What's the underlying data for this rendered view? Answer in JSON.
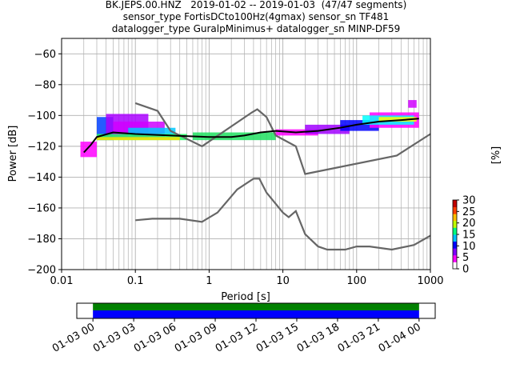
{
  "chart_data": {
    "type": "line",
    "title_lines": [
      "BK.JEPS.00.HNZ   2019-01-02 -- 2019-01-03  (47/47 segments)",
      "sensor_type FortisDCto100Hz(4gmax) sensor_sn TF481",
      "datalogger_type GuralpMinimus+ datalogger_sn MINP-DF59"
    ],
    "xlabel": "Period [s]",
    "ylabel": "Power [dB]",
    "x_scale": "log",
    "xlim": [
      0.01,
      1000
    ],
    "ylim": [
      -200,
      -50
    ],
    "x_ticks": [
      {
        "value": 0.01,
        "label": "0.01"
      },
      {
        "value": 0.1,
        "label": "0.1"
      },
      {
        "value": 1,
        "label": "1"
      },
      {
        "value": 10,
        "label": "10"
      },
      {
        "value": 100,
        "label": "100"
      },
      {
        "value": 1000,
        "label": "1000"
      }
    ],
    "y_ticks": [
      {
        "value": -60,
        "label": "−60"
      },
      {
        "value": -80,
        "label": "−80"
      },
      {
        "value": -100,
        "label": "−100"
      },
      {
        "value": -120,
        "label": "−120"
      },
      {
        "value": -140,
        "label": "−140"
      },
      {
        "value": -160,
        "label": "−160"
      },
      {
        "value": -180,
        "label": "−180"
      },
      {
        "value": -200,
        "label": "−200"
      }
    ],
    "grid": true,
    "model_lines": [
      {
        "points": [
          [
            0.1,
            -92
          ],
          [
            0.2,
            -97
          ],
          [
            0.3,
            -110
          ],
          [
            0.8,
            -120
          ],
          [
            3.8,
            -98
          ],
          [
            4.5,
            -96
          ],
          [
            6,
            -101
          ],
          [
            8,
            -113
          ],
          [
            15,
            -120
          ],
          [
            20,
            -138
          ],
          [
            350,
            -126
          ],
          [
            1000,
            -112
          ]
        ]
      },
      {
        "points": [
          [
            0.1,
            -168
          ],
          [
            0.17,
            -167
          ],
          [
            0.4,
            -167
          ],
          [
            0.8,
            -169
          ],
          [
            1.3,
            -163
          ],
          [
            2.4,
            -148
          ],
          [
            4,
            -141
          ],
          [
            4.8,
            -141
          ],
          [
            6,
            -150
          ],
          [
            10,
            -163
          ],
          [
            12,
            -166
          ],
          [
            15,
            -162
          ],
          [
            20,
            -177
          ],
          [
            30,
            -185
          ],
          [
            40,
            -187
          ],
          [
            70,
            -187
          ],
          [
            100,
            -185
          ],
          [
            150,
            -185
          ],
          [
            300,
            -187
          ],
          [
            600,
            -184
          ],
          [
            1000,
            -178
          ]
        ]
      }
    ],
    "mean_line": [
      [
        0.02,
        -124
      ],
      [
        0.025,
        -119
      ],
      [
        0.03,
        -114
      ],
      [
        0.05,
        -111
      ],
      [
        0.1,
        -112
      ],
      [
        0.3,
        -113
      ],
      [
        1,
        -114
      ],
      [
        2,
        -114
      ],
      [
        3,
        -113
      ],
      [
        5,
        -111
      ],
      [
        8,
        -110
      ],
      [
        15,
        -111
      ],
      [
        30,
        -110
      ],
      [
        60,
        -108
      ],
      [
        100,
        -106
      ],
      [
        200,
        -104
      ],
      [
        400,
        -103
      ],
      [
        700,
        -102
      ]
    ],
    "psd_bands": [
      {
        "x": [
          0.03,
          0.05
        ],
        "y": [
          -116,
          -101
        ],
        "color": "#0040ff"
      },
      {
        "x": [
          0.04,
          0.15
        ],
        "y": [
          -115,
          -99
        ],
        "color": "#aa00ff"
      },
      {
        "x": [
          0.05,
          0.25
        ],
        "y": [
          -114,
          -104
        ],
        "color": "#d000ff"
      },
      {
        "x": [
          0.08,
          0.35
        ],
        "y": [
          -113,
          -108
        ],
        "color": "#00c8ff"
      },
      {
        "x": [
          0.03,
          0.5
        ],
        "y": [
          -116,
          -112
        ],
        "color": "#20ff60"
      },
      {
        "x": [
          0.03,
          0.4
        ],
        "y": [
          -116,
          -114
        ],
        "color": "#ffe000"
      },
      {
        "x": [
          0.6,
          8
        ],
        "y": [
          -116,
          -111
        ],
        "color": "#20e060"
      },
      {
        "x": [
          8,
          30
        ],
        "y": [
          -113,
          -109
        ],
        "color": "#ff00ff"
      },
      {
        "x": [
          20,
          80
        ],
        "y": [
          -112,
          -106
        ],
        "color": "#a000ff"
      },
      {
        "x": [
          60,
          200
        ],
        "y": [
          -110,
          -103
        ],
        "color": "#0000ff"
      },
      {
        "x": [
          150,
          700
        ],
        "y": [
          -108,
          -98
        ],
        "color": "#ff00ff"
      },
      {
        "x": [
          120,
          600
        ],
        "y": [
          -106,
          -100
        ],
        "color": "#00ffff"
      },
      {
        "x": [
          200,
          650
        ],
        "y": [
          -104,
          -101
        ],
        "color": "#ffff00"
      },
      {
        "x": [
          500,
          650
        ],
        "y": [
          -95,
          -90
        ],
        "color": "#d000ff"
      },
      {
        "x": [
          0.018,
          0.03
        ],
        "y": [
          -127,
          -117
        ],
        "color": "#ff00ff"
      }
    ],
    "colorbar": {
      "label": "[%]",
      "ticks": [
        {
          "value": 0,
          "label": "0"
        },
        {
          "value": 5,
          "label": "5"
        },
        {
          "value": 10,
          "label": "10"
        },
        {
          "value": 15,
          "label": "15"
        },
        {
          "value": 20,
          "label": "20"
        },
        {
          "value": 25,
          "label": "25"
        },
        {
          "value": 30,
          "label": "30"
        }
      ],
      "range": [
        0,
        30
      ],
      "colors": [
        "#ffffff",
        "#ff00ff",
        "#8000ff",
        "#0000ff",
        "#00c0ff",
        "#00ff80",
        "#c0ff00",
        "#ffc000",
        "#ff4000",
        "#c00000"
      ]
    },
    "timeline": {
      "tick_labels": [
        "01-03 00",
        "01-03 03",
        "01-03 06",
        "01-03 09",
        "01-03 12",
        "01-03 15",
        "01-03 18",
        "01-03 21",
        "01-04 00"
      ],
      "data_fraction": [
        0.045,
        0.955
      ],
      "gap_color": "#008000",
      "data_color": "#0000ff"
    },
    "colors": {
      "model": "#666666",
      "mean": "#000000",
      "grid": "#b0b0b0"
    }
  }
}
